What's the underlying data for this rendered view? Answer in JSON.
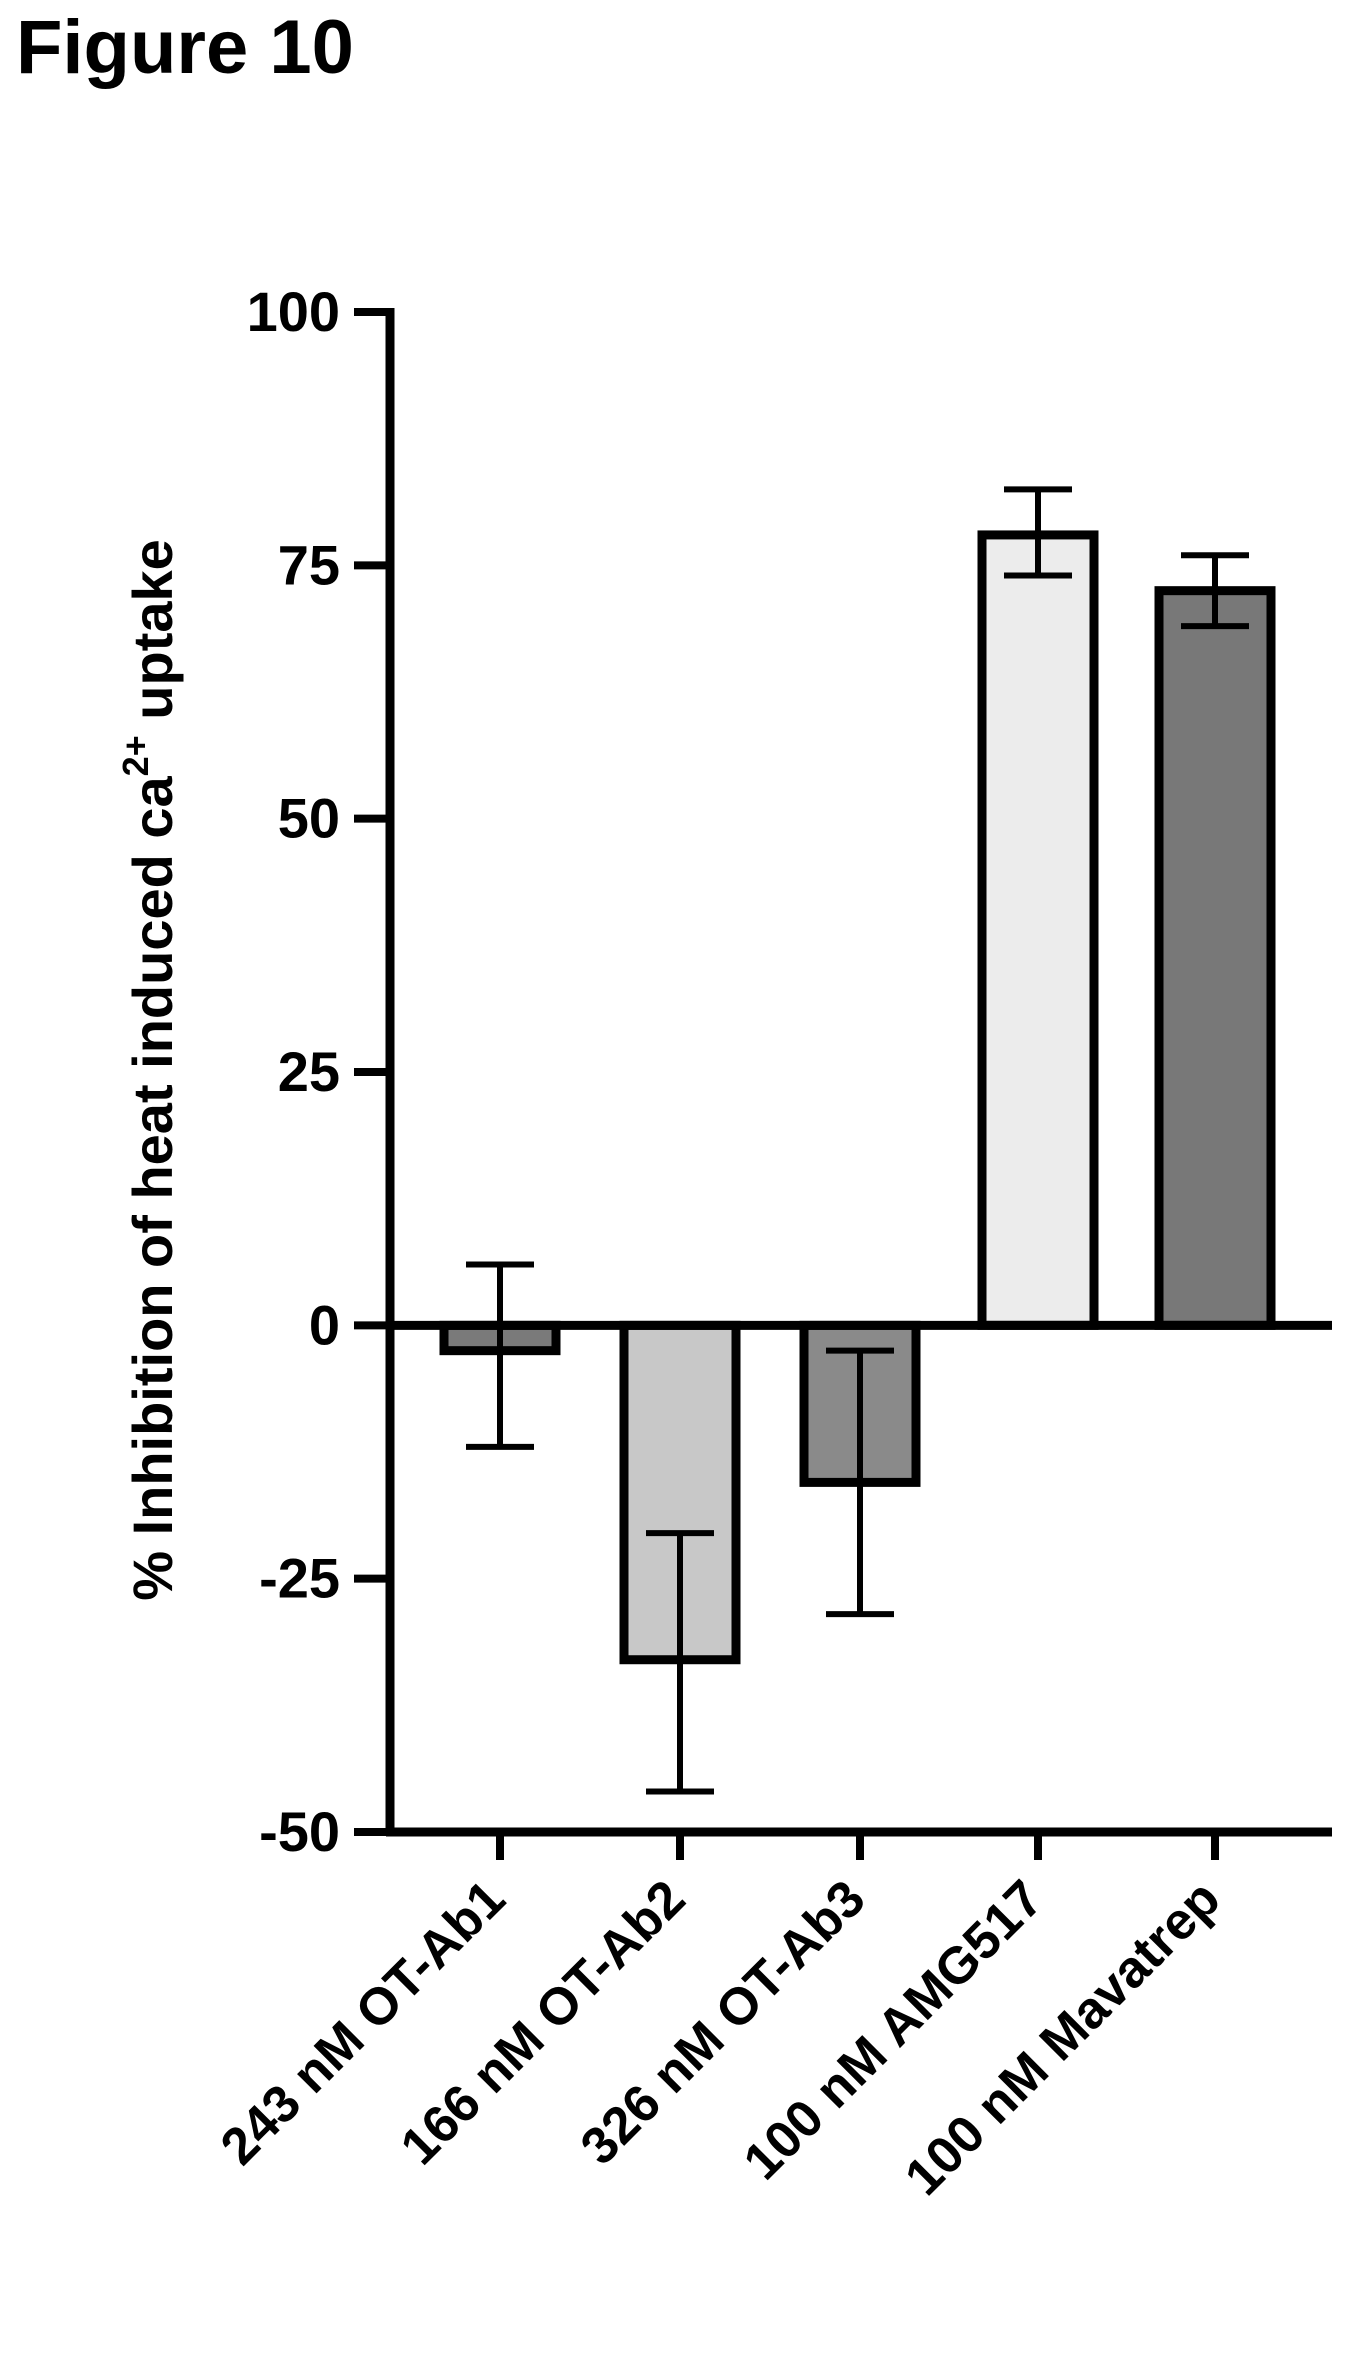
{
  "figure": {
    "label": "Figure 10"
  },
  "chart_data": {
    "type": "bar",
    "title": "",
    "xlabel": "",
    "ylabel": "% Inhibition of heat induced ca",
    "ylabel_superscript": "2+",
    "ylabel_suffix": " uptake",
    "ylim": [
      -50,
      100
    ],
    "yticks": [
      100,
      75,
      50,
      25,
      0,
      -25,
      -50
    ],
    "categories": [
      "243 nM OT-Ab1",
      "166 nM OT-Ab2",
      "326 nM OT-Ab3",
      "100 nM AMG517",
      "100 nM Mavatrep"
    ],
    "values": [
      -2.5,
      -33,
      -15.5,
      78,
      72.5
    ],
    "error_low": [
      -12,
      -46,
      -28.5,
      74,
      69
    ],
    "error_high": [
      6,
      -20.5,
      -2.5,
      82.5,
      76
    ],
    "bar_colors": [
      "#7a7a7a",
      "#c8c8c8",
      "#8a8a8a",
      "#ececec",
      "#787878"
    ],
    "grid": false,
    "legend": "none"
  }
}
